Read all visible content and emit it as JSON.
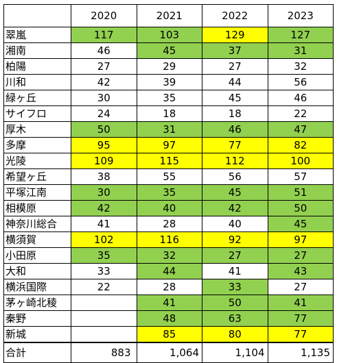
{
  "colors": {
    "green": "#92d050",
    "yellow": "#ffff00",
    "none": "#ffffff"
  },
  "years": [
    "2020",
    "2021",
    "2022",
    "2023"
  ],
  "rows": [
    {
      "name": "翠嵐",
      "values": [
        "117",
        "103",
        "129",
        "127"
      ],
      "fills": [
        "green",
        "green",
        "yellow",
        "green"
      ]
    },
    {
      "name": "湘南",
      "values": [
        "46",
        "45",
        "37",
        "31"
      ],
      "fills": [
        "none",
        "green",
        "green",
        "green"
      ]
    },
    {
      "name": "柏陽",
      "values": [
        "27",
        "29",
        "27",
        "32"
      ],
      "fills": [
        "none",
        "none",
        "none",
        "none"
      ]
    },
    {
      "name": "川和",
      "values": [
        "42",
        "39",
        "44",
        "56"
      ],
      "fills": [
        "none",
        "none",
        "none",
        "none"
      ]
    },
    {
      "name": "緑ヶ丘",
      "values": [
        "30",
        "35",
        "45",
        "46"
      ],
      "fills": [
        "none",
        "none",
        "none",
        "none"
      ]
    },
    {
      "name": "サイフロ",
      "values": [
        "24",
        "18",
        "18",
        "22"
      ],
      "fills": [
        "none",
        "none",
        "none",
        "none"
      ]
    },
    {
      "name": "厚木",
      "values": [
        "50",
        "31",
        "46",
        "47"
      ],
      "fills": [
        "green",
        "green",
        "green",
        "green"
      ]
    },
    {
      "name": "多摩",
      "values": [
        "95",
        "97",
        "77",
        "82"
      ],
      "fills": [
        "yellow",
        "yellow",
        "yellow",
        "yellow"
      ]
    },
    {
      "name": "光陵",
      "values": [
        "109",
        "115",
        "112",
        "100"
      ],
      "fills": [
        "yellow",
        "yellow",
        "yellow",
        "yellow"
      ]
    },
    {
      "name": "希望ヶ丘",
      "values": [
        "38",
        "55",
        "56",
        "57"
      ],
      "fills": [
        "none",
        "none",
        "none",
        "none"
      ]
    },
    {
      "name": "平塚江南",
      "values": [
        "30",
        "35",
        "45",
        "51"
      ],
      "fills": [
        "green",
        "green",
        "green",
        "green"
      ]
    },
    {
      "name": "相模原",
      "values": [
        "42",
        "40",
        "42",
        "50"
      ],
      "fills": [
        "green",
        "green",
        "green",
        "green"
      ]
    },
    {
      "name": "神奈川総合",
      "values": [
        "41",
        "28",
        "40",
        "45"
      ],
      "fills": [
        "none",
        "none",
        "none",
        "green"
      ]
    },
    {
      "name": "横須賀",
      "values": [
        "102",
        "116",
        "92",
        "97"
      ],
      "fills": [
        "yellow",
        "yellow",
        "yellow",
        "yellow"
      ]
    },
    {
      "name": "小田原",
      "values": [
        "35",
        "32",
        "27",
        "27"
      ],
      "fills": [
        "green",
        "green",
        "green",
        "green"
      ]
    },
    {
      "name": "大和",
      "values": [
        "33",
        "44",
        "41",
        "43"
      ],
      "fills": [
        "none",
        "green",
        "none",
        "green"
      ]
    },
    {
      "name": "横浜国際",
      "values": [
        "22",
        "28",
        "33",
        "27"
      ],
      "fills": [
        "none",
        "none",
        "green",
        "none"
      ]
    },
    {
      "name": "茅ヶ崎北稜",
      "values": [
        "",
        "41",
        "50",
        "41"
      ],
      "fills": [
        "none",
        "green",
        "green",
        "green"
      ]
    },
    {
      "name": "秦野",
      "values": [
        "",
        "48",
        "63",
        "77"
      ],
      "fills": [
        "none",
        "green",
        "green",
        "green"
      ]
    },
    {
      "name": "新城",
      "values": [
        "",
        "85",
        "80",
        "77"
      ],
      "fills": [
        "none",
        "yellow",
        "yellow",
        "yellow"
      ]
    }
  ],
  "total": {
    "label": "合計",
    "values": [
      "883",
      "1,064",
      "1,104",
      "1,135"
    ]
  }
}
